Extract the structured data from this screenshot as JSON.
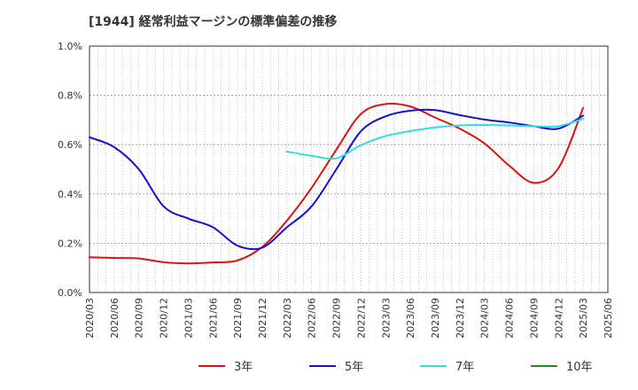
{
  "title": "[1944]  経常利益マージンの標準偏差の推移",
  "chart_data": {
    "type": "line",
    "title": "[1944]  経常利益マージンの標準偏差の推移",
    "xlabel": "",
    "ylabel": "",
    "ylim": [
      0,
      1.0
    ],
    "y_ticks": [
      "0.0%",
      "0.2%",
      "0.4%",
      "0.6%",
      "0.8%",
      "1.0%"
    ],
    "x_ticks": [
      "2020/03",
      "2020/06",
      "2020/09",
      "2020/12",
      "2021/03",
      "2021/06",
      "2021/09",
      "2021/12",
      "2022/03",
      "2022/06",
      "2022/09",
      "2022/12",
      "2023/03",
      "2023/06",
      "2023/09",
      "2023/12",
      "2024/03",
      "2024/06",
      "2024/09",
      "2024/12",
      "2025/03",
      "2025/06"
    ],
    "grid": true,
    "legend_position": "bottom",
    "series": [
      {
        "name": "3年",
        "color": "#dd1111",
        "x": [
          "2020/03",
          "2020/06",
          "2020/09",
          "2020/12",
          "2021/03",
          "2021/06",
          "2021/09",
          "2021/12",
          "2022/03",
          "2022/06",
          "2022/09",
          "2022/12",
          "2023/03",
          "2023/06",
          "2023/09",
          "2023/12",
          "2024/03",
          "2024/06",
          "2024/09",
          "2024/12",
          "2025/03"
        ],
        "values": [
          0.143,
          0.14,
          0.138,
          0.123,
          0.118,
          0.122,
          0.13,
          0.185,
          0.292,
          0.425,
          0.58,
          0.725,
          0.765,
          0.755,
          0.71,
          0.665,
          0.605,
          0.515,
          0.445,
          0.505,
          0.75
        ]
      },
      {
        "name": "5年",
        "color": "#1111cc",
        "x": [
          "2020/03",
          "2020/06",
          "2020/09",
          "2020/12",
          "2021/03",
          "2021/06",
          "2021/09",
          "2021/12",
          "2022/03",
          "2022/06",
          "2022/09",
          "2022/12",
          "2023/03",
          "2023/06",
          "2023/09",
          "2023/12",
          "2024/03",
          "2024/06",
          "2024/09",
          "2024/12",
          "2025/03"
        ],
        "values": [
          0.63,
          0.59,
          0.5,
          0.35,
          0.3,
          0.265,
          0.19,
          0.182,
          0.265,
          0.35,
          0.5,
          0.655,
          0.715,
          0.738,
          0.74,
          0.72,
          0.702,
          0.69,
          0.675,
          0.665,
          0.718
        ]
      },
      {
        "name": "7年",
        "color": "#33dddd",
        "x": [
          "2022/03",
          "2022/06",
          "2022/09",
          "2022/12",
          "2023/03",
          "2023/06",
          "2023/09",
          "2023/12",
          "2024/03",
          "2024/06",
          "2024/09",
          "2024/12",
          "2025/03"
        ],
        "values": [
          0.572,
          0.555,
          0.545,
          0.598,
          0.635,
          0.655,
          0.67,
          0.678,
          0.68,
          0.678,
          0.675,
          0.675,
          0.705
        ]
      },
      {
        "name": "10年",
        "color": "#228822",
        "x": [],
        "values": []
      }
    ]
  }
}
